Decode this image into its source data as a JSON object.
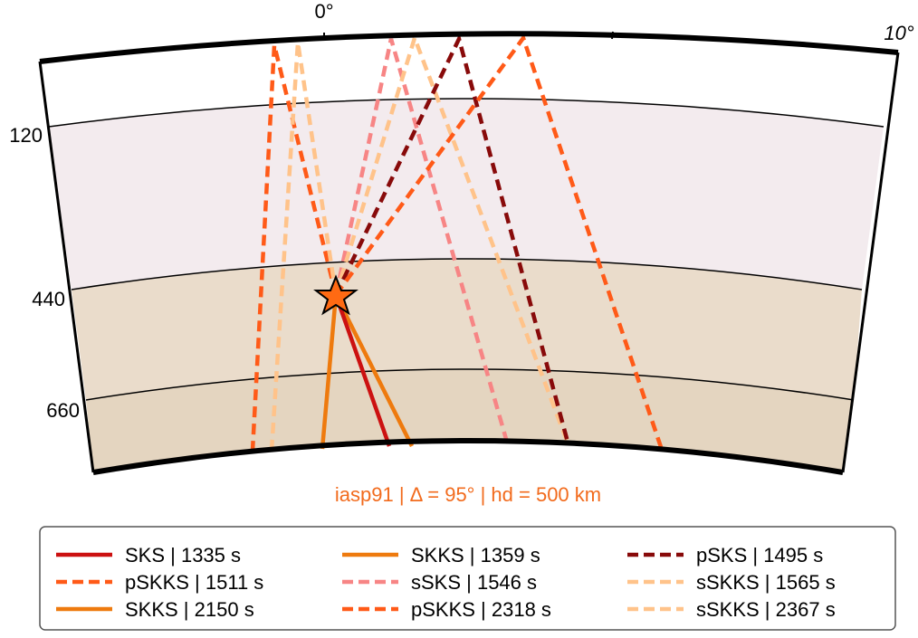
{
  "figure": {
    "caption": "iasp91 | Δ = 95° | hd = 500 km",
    "colors": {
      "crust_band": "#ffffff",
      "upper_mantle": "#f3ebee",
      "transition_zone": "#eadccb",
      "lower_mantle": "#e4d5c0",
      "star_fill": "#ff6a13",
      "caption_color": "#f26b1d"
    },
    "top_labels": [
      "0°",
      "10°"
    ],
    "depth_labels": [
      "120",
      "440",
      "660"
    ],
    "source_icon": "star-icon"
  },
  "rays": [
    {
      "name": "SKS | 1335 s",
      "color": "#cc1111",
      "dashed": false
    },
    {
      "name": "SKKS | 1359 s",
      "color": "#ee7a0e",
      "dashed": false
    },
    {
      "name": "pSKS | 1495 s",
      "color": "#880a0a",
      "dashed": true
    },
    {
      "name": "pSKKS | 1511 s",
      "color": "#ff5a18",
      "dashed": true
    },
    {
      "name": "sSKS | 1546 s",
      "color": "#f78585",
      "dashed": true
    },
    {
      "name": "sSKKS | 1565 s",
      "color": "#ffc38a",
      "dashed": true
    },
    {
      "name": "SKKS | 2150 s",
      "color": "#ee7a0e",
      "dashed": false
    },
    {
      "name": "pSKKS | 2318 s",
      "color": "#ff5a18",
      "dashed": true
    },
    {
      "name": "sSKKS | 2367 s",
      "color": "#ffc38a",
      "dashed": true
    }
  ]
}
